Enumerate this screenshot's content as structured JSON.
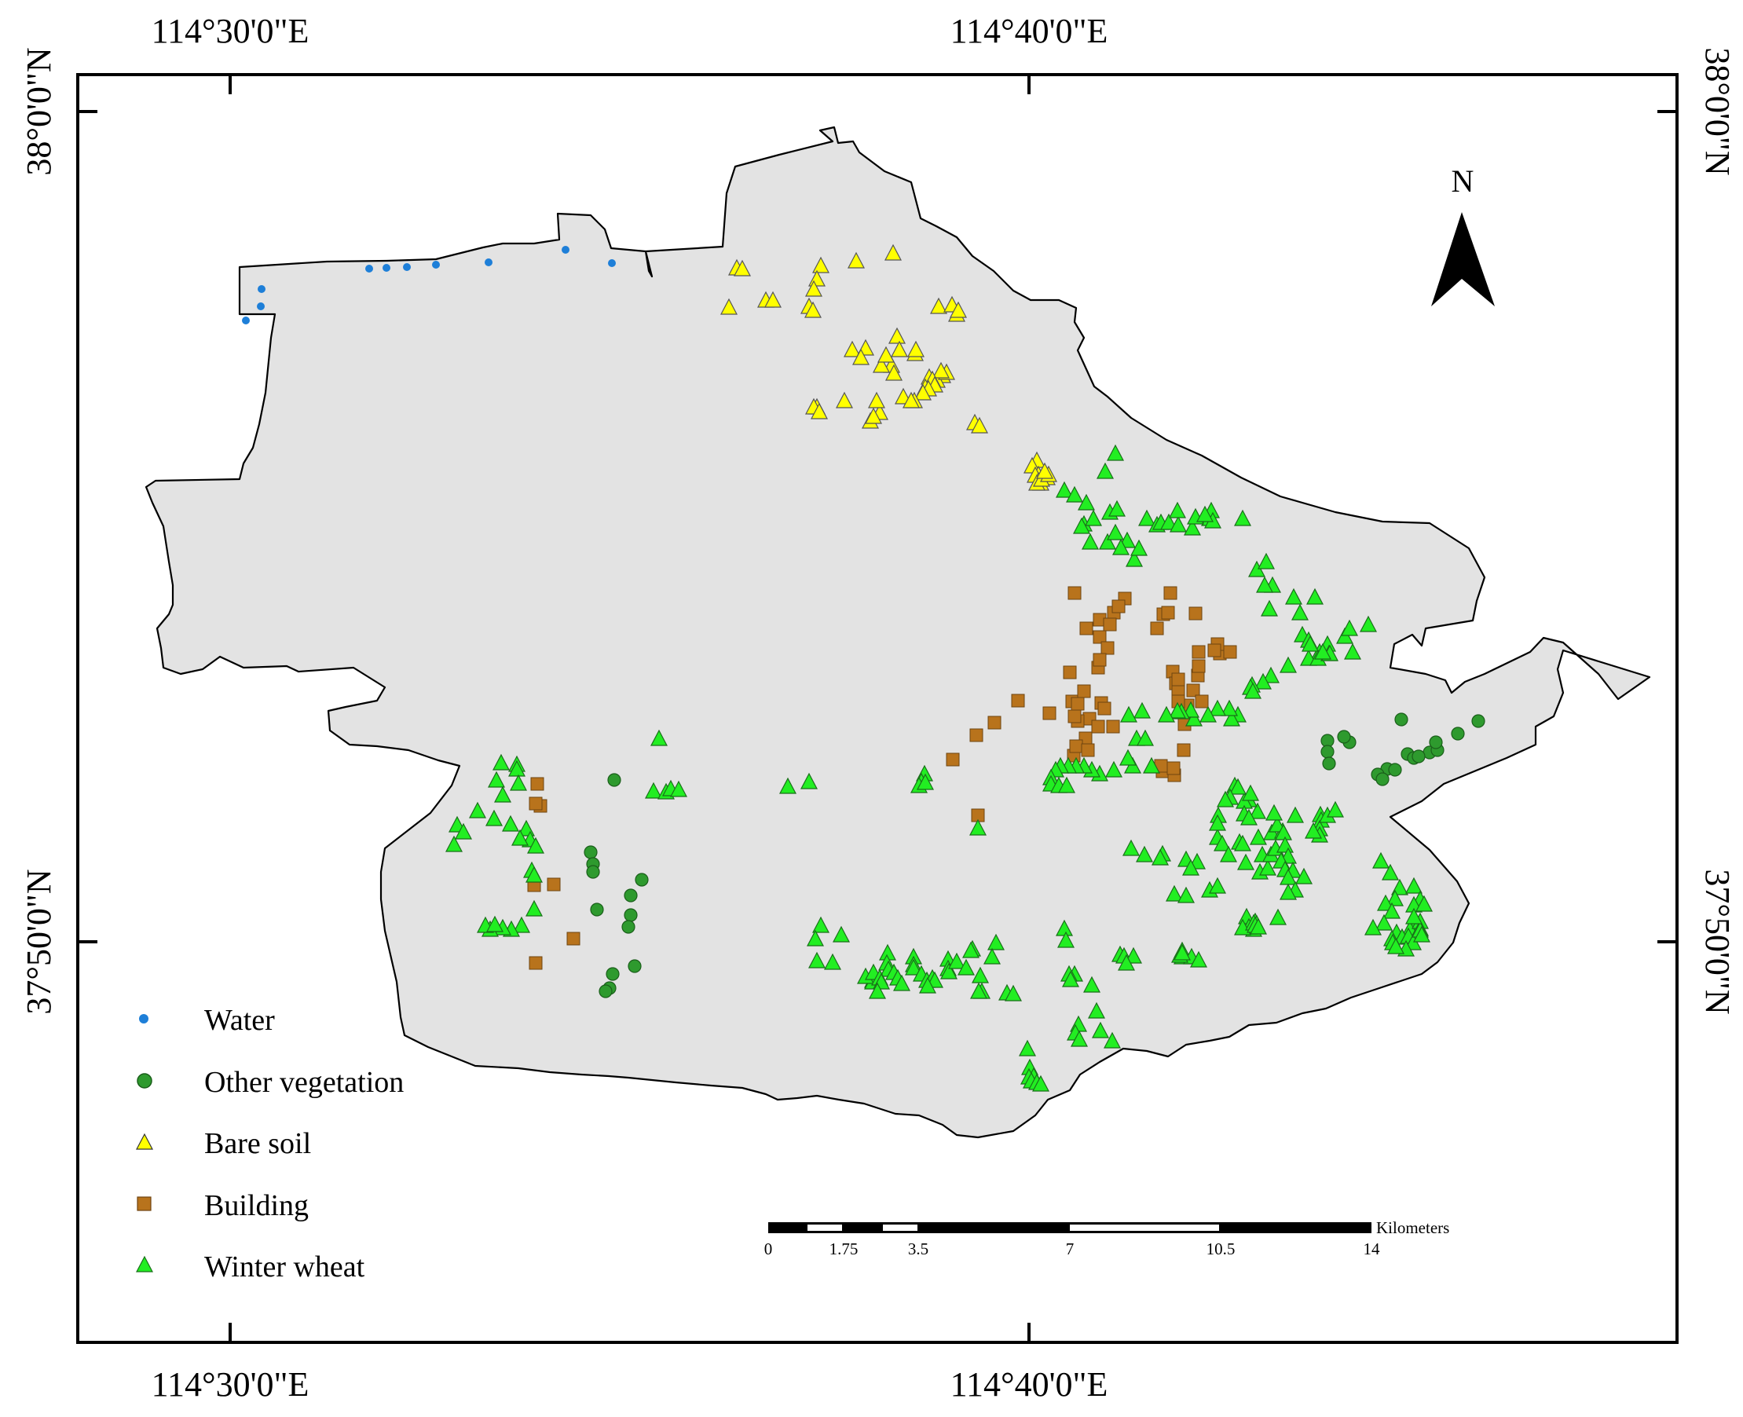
{
  "graticule": {
    "top_labels": [
      "114°30'0\"E",
      "114°40'0\"E"
    ],
    "bottom_labels": [
      "114°30'0\"E",
      "114°40'0\"E"
    ],
    "left_labels": [
      "38°0'0\"N",
      "37°50'0\"N"
    ],
    "right_labels": [
      "38°0'0\"N",
      "37°50'0\"N"
    ]
  },
  "north_arrow": {
    "label": "N"
  },
  "scale_bar": {
    "unit": "Kilometers",
    "ticks": [
      "0",
      "1.75",
      "3.5",
      "7",
      "10.5",
      "14"
    ]
  },
  "colors": {
    "region_fill": "#e3e3e3",
    "water": "#1e7fd8",
    "other_vegetation": "#2e9a2e",
    "bare_soil": "#ffff00",
    "building": "#b8731c",
    "winter_wheat": "#22ee22"
  },
  "legend": [
    {
      "key": "water",
      "label": "Water",
      "symbol": "dot-icon"
    },
    {
      "key": "other_vegetation",
      "label": "Other vegetation",
      "symbol": "circle-icon"
    },
    {
      "key": "bare_soil",
      "label": "Bare soil",
      "symbol": "triangle-icon"
    },
    {
      "key": "building",
      "label": "Building",
      "symbol": "square-icon"
    },
    {
      "key": "winter_wheat",
      "label": "Winter wheat",
      "symbol": "triangle-icon"
    }
  ]
}
